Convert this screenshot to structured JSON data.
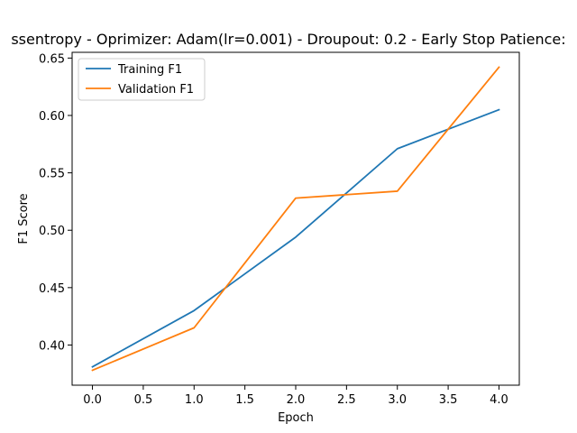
{
  "chart_data": {
    "type": "line",
    "title": "ssentropy - Oprimizer: Adam(lr=0.001) - Droupout: 0.2 - Early Stop Patience:",
    "xlabel": "Epoch",
    "ylabel": "F1 Score",
    "x": [
      0,
      1,
      2,
      3,
      4
    ],
    "xlim": [
      -0.2,
      4.2
    ],
    "ylim": [
      0.365,
      0.655
    ],
    "xticks": [
      0.0,
      0.5,
      1.0,
      1.5,
      2.0,
      2.5,
      3.0,
      3.5,
      4.0
    ],
    "xtick_labels": [
      "0.0",
      "0.5",
      "1.0",
      "1.5",
      "2.0",
      "2.5",
      "3.0",
      "3.5",
      "4.0"
    ],
    "yticks": [
      0.4,
      0.45,
      0.5,
      0.55,
      0.6,
      0.65
    ],
    "ytick_labels": [
      "0.40",
      "0.45",
      "0.50",
      "0.55",
      "0.60",
      "0.65"
    ],
    "grid": false,
    "legend_position": "top-left",
    "series": [
      {
        "name": "Training F1",
        "color": "#1f77b4",
        "values": [
          0.381,
          0.43,
          0.494,
          0.571,
          0.605
        ]
      },
      {
        "name": "Validation F1",
        "color": "#ff7f0e",
        "values": [
          0.378,
          0.415,
          0.528,
          0.534,
          0.642
        ]
      }
    ]
  }
}
